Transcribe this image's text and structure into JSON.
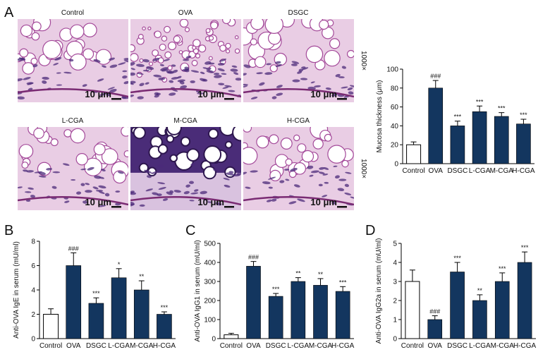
{
  "panel_labels": [
    "A",
    "B",
    "C",
    "D"
  ],
  "histology": {
    "magnification": "1000×",
    "panels": [
      {
        "title": "Control",
        "scale": "10 μm",
        "tone": "light"
      },
      {
        "title": "OVA",
        "scale": "10 μm",
        "tone": "dense"
      },
      {
        "title": "DSGC",
        "scale": "10 μm",
        "tone": "light"
      },
      {
        "title": "L-CGA",
        "scale": "10 μm",
        "tone": "light"
      },
      {
        "title": "M-CGA",
        "scale": "10 μm",
        "tone": "dark"
      },
      {
        "title": "H-CGA",
        "scale": "10 μm",
        "tone": "light"
      }
    ]
  },
  "colors": {
    "bar_fill": "#13365f",
    "control_fill": "#ffffff",
    "axis": "#000000",
    "tissue_bg": "#e9cde4",
    "tissue_cell": "#ffffff",
    "tissue_edge": "#a44a9a",
    "nucleus": "#4b2a7a"
  },
  "chart_data": [
    {
      "id": "mucosa",
      "type": "bar",
      "categories": [
        "Control",
        "OVA",
        "DSGC",
        "L-CGA",
        "M-CGA",
        "H-CGA"
      ],
      "values": [
        20,
        80,
        40,
        55,
        50,
        42
      ],
      "errors": [
        3,
        8,
        5,
        6,
        4,
        5
      ],
      "annotations": [
        "",
        "###",
        "***",
        "***",
        "***",
        "***"
      ],
      "ylabel": "Mucosa thickness (μm)",
      "ylim": [
        0,
        100
      ],
      "yticks": [
        0,
        20,
        40,
        60,
        80,
        100
      ]
    },
    {
      "id": "ige",
      "type": "bar",
      "categories": [
        "Control",
        "OVA",
        "DSGC",
        "L-CGA",
        "M-CGA",
        "H-CGA"
      ],
      "values": [
        2,
        6,
        2.9,
        5,
        4,
        2
      ],
      "errors": [
        0.45,
        1.05,
        0.45,
        0.75,
        0.75,
        0.2
      ],
      "annotations": [
        "",
        "###",
        "***",
        "*",
        "**",
        "***"
      ],
      "ylabel": "Anti-OVA IgE in serum (mU/ml)",
      "ylim": [
        0,
        8
      ],
      "yticks": [
        0,
        2,
        4,
        6,
        8
      ]
    },
    {
      "id": "igg1",
      "type": "bar",
      "categories": [
        "Control",
        "OVA",
        "DSGC",
        "L-CGA",
        "M-CGA",
        "H-CGA"
      ],
      "values": [
        20,
        380,
        222,
        300,
        280,
        248
      ],
      "errors": [
        8,
        25,
        15,
        20,
        35,
        25
      ],
      "annotations": [
        "",
        "###",
        "***",
        "**",
        "**",
        "***"
      ],
      "ylabel": "Anti-OVA IgG1 in serum (mU/ml)",
      "ylim": [
        0,
        500
      ],
      "yticks": [
        0,
        100,
        200,
        300,
        400,
        500
      ]
    },
    {
      "id": "igg2a",
      "type": "bar",
      "categories": [
        "Control",
        "OVA",
        "DSGC",
        "L-CGA",
        "M-CGA",
        "H-CGA"
      ],
      "values": [
        3,
        1,
        3.5,
        2,
        3,
        4
      ],
      "errors": [
        0.6,
        0.2,
        0.5,
        0.3,
        0.45,
        0.55
      ],
      "annotations": [
        "",
        "###",
        "***",
        "**",
        "***",
        "***"
      ],
      "ylabel": "Anti-OVA IgG2a in serum (mU/ml)",
      "ylim": [
        0,
        5
      ],
      "yticks": [
        0,
        1,
        2,
        3,
        4,
        5
      ]
    }
  ]
}
